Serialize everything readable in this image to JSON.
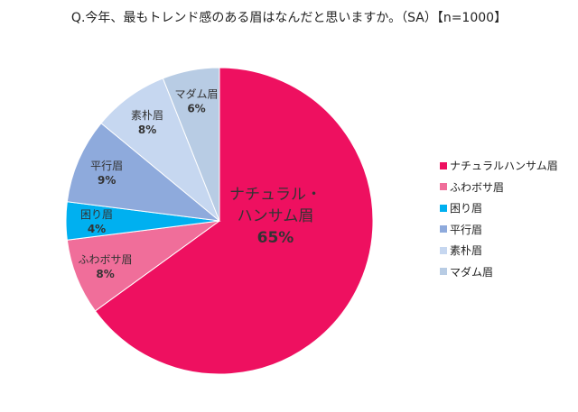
{
  "chart_data": {
    "type": "pie",
    "title": "Q.今年、最もトレンド感のある眉はなんだと思いますか。（SA）【n=1000】",
    "categories": [
      "ナチュラルハンサム眉",
      "ふわボサ眉",
      "困り眉",
      "平行眉",
      "素朴眉",
      "マダム眉"
    ],
    "slice_labels": [
      [
        "ナチュラル・",
        "ハンサム眉"
      ],
      [
        "ふわボサ眉"
      ],
      [
        "困り眉"
      ],
      [
        "平行眉"
      ],
      [
        "素朴眉"
      ],
      [
        "マダム眉"
      ]
    ],
    "values": [
      65,
      8,
      4,
      9,
      8,
      6
    ],
    "value_labels": [
      "65%",
      "8%",
      "4%",
      "9%",
      "8%",
      "6%"
    ],
    "colors": [
      "#ee1060",
      "#f06e9a",
      "#00b0f0",
      "#8eaadc",
      "#c6d7f0",
      "#b8cce4"
    ],
    "start": "top",
    "direction": "clockwise",
    "legend_position": "right"
  }
}
